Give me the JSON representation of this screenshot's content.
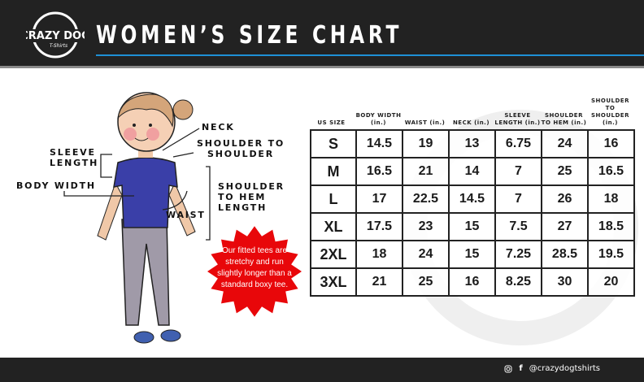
{
  "header": {
    "title": "WOMEN’S SIZE CHART",
    "logo_text": "CRAZY DOG T-Shirts",
    "accent": "#1e90d6"
  },
  "labels": {
    "neck": "NECK",
    "shoulder_to_shoulder": [
      "SHOULDER TO",
      "SHOULDER"
    ],
    "sleeve_length": [
      "SLEEVE",
      "LENGTH"
    ],
    "body_width": "BODY WIDTH",
    "waist": "WAIST",
    "shoulder_to_hem": [
      "SHOULDER",
      "TO HEM",
      "LENGTH"
    ]
  },
  "callout": {
    "text": "Our fitted tees are stretchy and run slightly longer than a standard boxy tee.",
    "color": "#e8070a"
  },
  "table": {
    "headers": [
      "US SIZE",
      "BODY WIDTH (in.)",
      "WAIST (in.)",
      "NECK (in.)",
      "SLEEVE LENGTH (in.)",
      "SHOULDER TO HEM (in.)",
      "SHOULDER TO SHOULDER (in.)"
    ],
    "rows": [
      [
        "S",
        "14.5",
        "19",
        "13",
        "6.75",
        "24",
        "16"
      ],
      [
        "M",
        "16.5",
        "21",
        "14",
        "7",
        "25",
        "16.5"
      ],
      [
        "L",
        "17",
        "22.5",
        "14.5",
        "7",
        "26",
        "18"
      ],
      [
        "XL",
        "17.5",
        "23",
        "15",
        "7.5",
        "27",
        "18.5"
      ],
      [
        "2XL",
        "18",
        "24",
        "15",
        "7.25",
        "28.5",
        "19.5"
      ],
      [
        "3XL",
        "21",
        "25",
        "16",
        "8.25",
        "30",
        "20"
      ]
    ]
  },
  "footer": {
    "handle": "@crazydogtshirts",
    "icons": [
      "instagram-icon",
      "facebook-icon"
    ]
  }
}
